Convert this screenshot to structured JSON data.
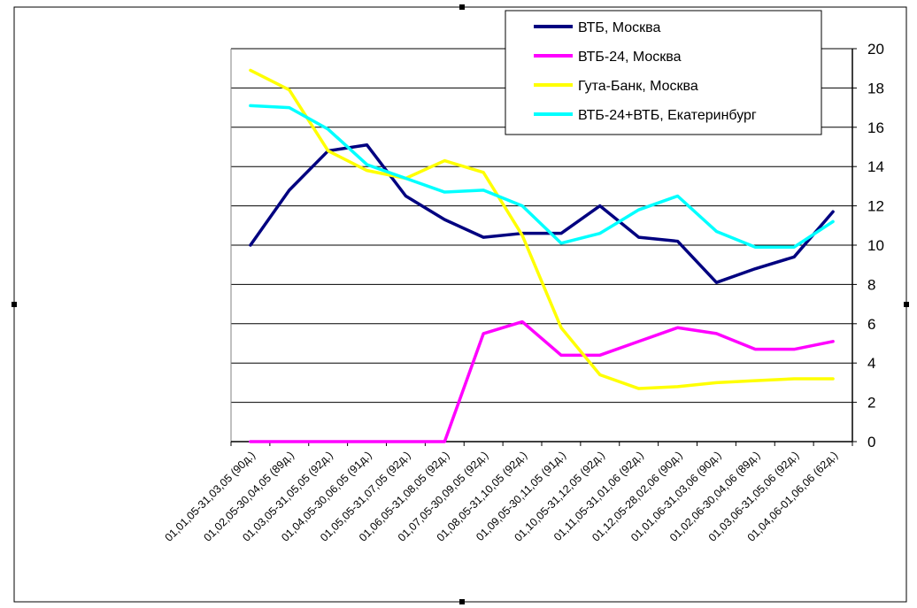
{
  "chart_data": {
    "type": "line",
    "categories": [
      "01,01,05-31,03,05 (90д.)",
      "01,02,05-30,04,05 (89д.)",
      "01,03,05-31,05,05 (92д.)",
      "01,04,05-30,06,05 (91д.)",
      "01,05,05-31,07,05 (92д.)",
      "01,06,05-31,08,05 (92д.)",
      "01,07,05-30,09,05 (92д.)",
      "01,08,05-31,10,05 (92д.)",
      "01,09,05-30,11,05 (91д.)",
      "01,10,05-31,12,05 (92д.)",
      "01,11,05-31,01,06 (92д.)",
      "01,12,05-28,02,06 (90д.)",
      "01,01,06-31,03,06 (90д.)",
      "01,02,06-30,04,06 (89д.)",
      "01,03,06-31,05,06 (92д.)",
      "01,04,06-01,06,06 (62д.)"
    ],
    "series": [
      {
        "name": "ВТБ, Москва",
        "color": "#000080",
        "values": [
          10.0,
          12.8,
          14.8,
          15.1,
          12.5,
          11.3,
          10.4,
          10.6,
          10.6,
          12.0,
          10.4,
          10.2,
          8.1,
          8.8,
          9.4,
          11.7
        ]
      },
      {
        "name": "ВТБ-24, Москва",
        "color": "#ff00ff",
        "values": [
          0,
          0,
          0,
          0,
          0,
          0,
          5.5,
          6.1,
          4.4,
          4.4,
          5.1,
          5.8,
          5.5,
          4.7,
          4.7,
          5.1
        ]
      },
      {
        "name": "Гута-Банк, Москва",
        "color": "#ffff00",
        "values": [
          18.9,
          17.9,
          14.8,
          13.8,
          13.4,
          14.3,
          13.7,
          10.5,
          5.8,
          3.4,
          2.7,
          2.8,
          3.0,
          3.1,
          3.2,
          3.2
        ]
      },
      {
        "name": "ВТБ-24+ВТБ, Екатеринбург",
        "color": "#00ffff",
        "values": [
          17.1,
          17.0,
          15.9,
          14.1,
          13.4,
          12.7,
          12.8,
          12.0,
          10.1,
          10.6,
          11.8,
          12.5,
          10.7,
          9.9,
          9.9,
          11.2
        ]
      }
    ],
    "ylim": [
      0,
      20
    ],
    "yticks": [
      0,
      2,
      4,
      6,
      8,
      10,
      12,
      14,
      16,
      18,
      20
    ],
    "y_axis_side": "right",
    "grid": true,
    "legend_position": "top-right"
  }
}
